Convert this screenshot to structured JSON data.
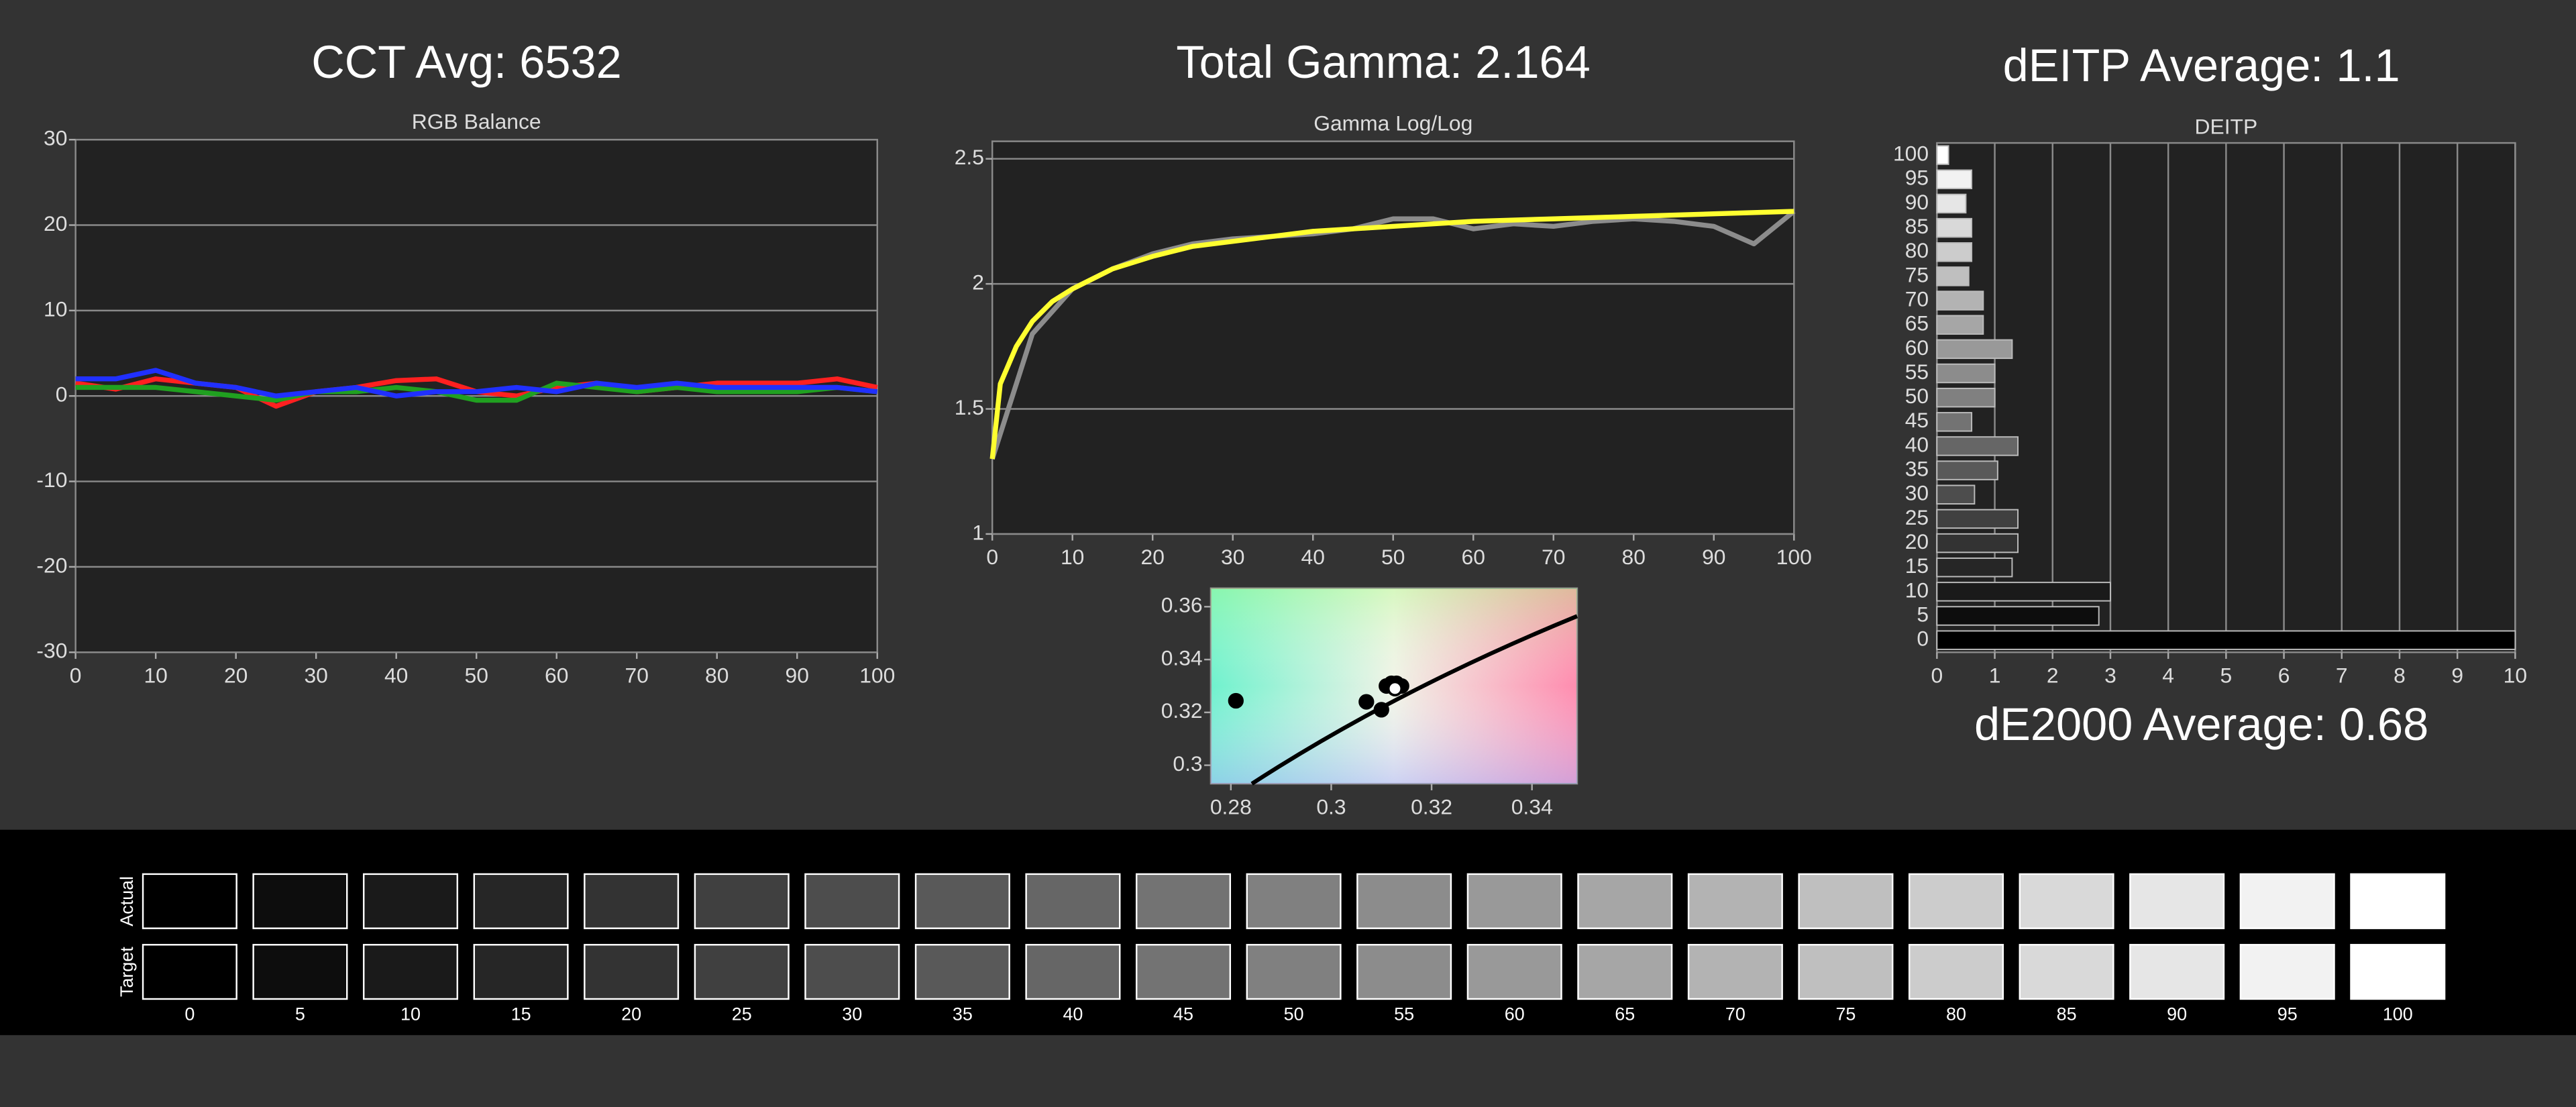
{
  "chart_data": [
    {
      "type": "line",
      "header": "CCT Avg: 6532",
      "title": "RGB Balance",
      "x": [
        0,
        5,
        10,
        15,
        20,
        25,
        30,
        35,
        40,
        45,
        50,
        55,
        60,
        65,
        70,
        75,
        80,
        85,
        90,
        95,
        100
      ],
      "series": [
        {
          "color": "#ff2020",
          "values": [
            1.5,
            0.8,
            2,
            1.5,
            1,
            -1.2,
            0.5,
            1,
            1.8,
            2,
            0.5,
            0,
            1,
            1.5,
            0.5,
            1,
            1.5,
            1.5,
            1.5,
            2,
            1
          ]
        },
        {
          "color": "#20a020",
          "values": [
            1,
            1,
            1,
            0.5,
            0,
            -0.5,
            0.5,
            0.5,
            1,
            0.5,
            -0.5,
            -0.5,
            1.5,
            1,
            0.5,
            1,
            0.5,
            0.5,
            0.5,
            1,
            0.5
          ]
        },
        {
          "color": "#2030ff",
          "values": [
            2,
            2,
            3,
            1.5,
            1,
            0,
            0.5,
            1,
            0,
            0.5,
            0.5,
            1,
            0.5,
            1.5,
            1,
            1.5,
            1,
            1,
            1,
            1,
            0.5
          ]
        }
      ],
      "xlim": [
        0,
        100
      ],
      "xticks": [
        0,
        10,
        20,
        30,
        40,
        50,
        60,
        70,
        80,
        90,
        100
      ],
      "ylim": [
        -30,
        30
      ],
      "yticks": [
        -30,
        -20,
        -10,
        0,
        10,
        20,
        30
      ],
      "grid": true
    },
    {
      "type": "line",
      "header": "Total Gamma: 2.164",
      "title": "Gamma Log/Log",
      "series": [
        {
          "color": "#8c8c8c",
          "x": [
            0,
            5,
            10,
            15,
            20,
            25,
            30,
            35,
            40,
            45,
            50,
            55,
            60,
            65,
            70,
            75,
            80,
            85,
            90,
            95,
            100
          ],
          "values": [
            1.3,
            1.8,
            1.98,
            2.06,
            2.12,
            2.16,
            2.18,
            2.19,
            2.2,
            2.22,
            2.26,
            2.26,
            2.22,
            2.24,
            2.23,
            2.25,
            2.26,
            2.25,
            2.23,
            2.16,
            2.29
          ]
        },
        {
          "color": "#ffff30",
          "x": [
            0,
            1,
            3,
            5,
            7.5,
            10,
            15,
            20,
            25,
            30,
            40,
            50,
            60,
            70,
            80,
            90,
            100
          ],
          "values": [
            1.3,
            1.6,
            1.75,
            1.85,
            1.93,
            1.98,
            2.06,
            2.11,
            2.15,
            2.17,
            2.21,
            2.23,
            2.25,
            2.26,
            2.27,
            2.28,
            2.29
          ]
        }
      ],
      "xlim": [
        0,
        100
      ],
      "xticks": [
        0,
        10,
        20,
        30,
        40,
        50,
        60,
        70,
        80,
        90,
        100
      ],
      "ylim": [
        1,
        2.57
      ],
      "yticks": [
        1,
        1.5,
        2,
        2.5
      ],
      "grid": true
    },
    {
      "type": "scatter",
      "series": [
        {
          "color": "#000000",
          "x": [
            0.281,
            0.307,
            0.31,
            0.312,
            0.313,
            0.311,
            0.314
          ],
          "values": [
            0.3244,
            0.324,
            0.321,
            0.331,
            0.331,
            0.33,
            0.33
          ]
        },
        {
          "color": "#ffffff",
          "x": [
            0.3127
          ],
          "values": [
            0.329
          ]
        }
      ],
      "xlim": [
        0.276,
        0.349
      ],
      "xticks": [
        0.28,
        0.3,
        0.32,
        0.34
      ],
      "ylim": [
        0.293,
        0.367
      ],
      "yticks": [
        0.3,
        0.32,
        0.34,
        0.36
      ]
    },
    {
      "type": "hbar",
      "header": "dEITP Average: 1.1",
      "title": "DEITP",
      "footer": "dE2000 Average: 0.68",
      "categories": [
        0,
        5,
        10,
        15,
        20,
        25,
        30,
        35,
        40,
        45,
        50,
        55,
        60,
        65,
        70,
        75,
        80,
        85,
        90,
        95,
        100
      ],
      "values": [
        10,
        2.8,
        3,
        1.3,
        1.4,
        1.4,
        0.65,
        1.05,
        1.4,
        0.6,
        1,
        1,
        1.3,
        0.8,
        0.8,
        0.55,
        0.6,
        0.6,
        0.5,
        0.6,
        0.2
      ],
      "xlim": [
        0,
        10
      ],
      "xticks": [
        0,
        1,
        2,
        3,
        4,
        5,
        6,
        7,
        8,
        9,
        10
      ],
      "grid": true
    }
  ],
  "swatches": {
    "rows": [
      "Actual",
      "Target"
    ],
    "levels": [
      0,
      5,
      10,
      15,
      20,
      25,
      30,
      35,
      40,
      45,
      50,
      55,
      60,
      65,
      70,
      75,
      80,
      85,
      90,
      95,
      100
    ]
  }
}
